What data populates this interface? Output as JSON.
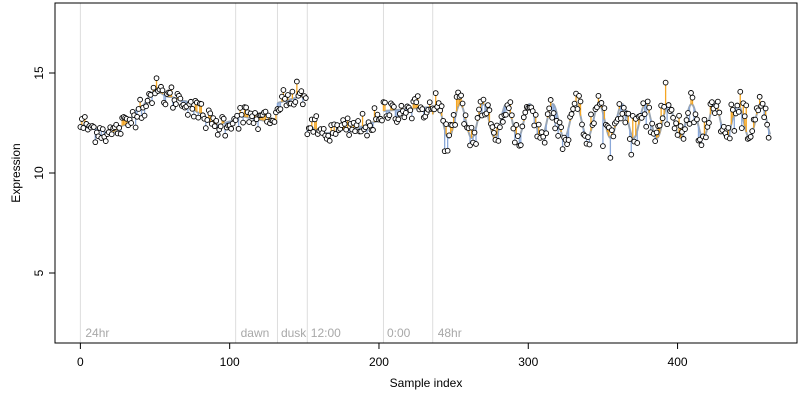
{
  "chart_data": {
    "type": "scatter",
    "title": "",
    "xlabel": "Sample index",
    "ylabel": "Expression",
    "xlim": [
      -17,
      480
    ],
    "ylim": [
      1.5,
      18.5
    ],
    "x_ticks": [
      0,
      100,
      200,
      300,
      400
    ],
    "y_ticks": [
      5,
      10,
      15
    ],
    "grid": false,
    "phase_boundaries": [
      0,
      104,
      132,
      152,
      203,
      236
    ],
    "phase_labels": [
      {
        "x": 2,
        "text": "24hr"
      },
      {
        "x": 106,
        "text": "dawn"
      },
      {
        "x": 133,
        "text": "dusk"
      },
      {
        "x": 153,
        "text": "12:00"
      },
      {
        "x": 204,
        "text": "0:00"
      },
      {
        "x": 238,
        "text": "48hr"
      }
    ],
    "colors": {
      "fit_line": "#9aa5b1",
      "residual_positive": "#f5a623",
      "residual_negative": "#8aa8d8",
      "point_fill": "#ffffff",
      "point_stroke": "#000000",
      "boundary": "#dddddd"
    },
    "series": [
      {
        "segments": [
          {
            "x0": 0,
            "x1": 103,
            "kind": "smooth",
            "knots": [
              [
                0,
                12.4
              ],
              [
                10,
                12.2
              ],
              [
                20,
                12.0
              ],
              [
                30,
                12.4
              ],
              [
                40,
                13.3
              ],
              [
                50,
                14.1
              ],
              [
                60,
                13.8
              ],
              [
                70,
                13.6
              ],
              [
                80,
                13.0
              ],
              [
                90,
                12.4
              ],
              [
                103,
                12.6
              ]
            ]
          },
          {
            "x0": 104,
            "x1": 131,
            "kind": "linear",
            "y0": 12.9,
            "y1": 12.5
          },
          {
            "x0": 132,
            "x1": 151,
            "kind": "linear",
            "y0": 13.5,
            "y1": 13.9
          },
          {
            "x0": 152,
            "x1": 202,
            "kind": "smooth",
            "knots": [
              [
                152,
                12.3
              ],
              [
                165,
                12.0
              ],
              [
                180,
                12.2
              ],
              [
                202,
                12.6
              ]
            ]
          },
          {
            "x0": 203,
            "x1": 235,
            "kind": "linear",
            "y0": 13.1,
            "y1": 13.3
          },
          {
            "x0": 236,
            "x1": 462,
            "kind": "oscillate",
            "mean": 12.6,
            "amp": 0.85,
            "period": 15.5,
            "phase": 0.4
          }
        ],
        "noise_sd": 0.32,
        "points": 462
      }
    ]
  }
}
